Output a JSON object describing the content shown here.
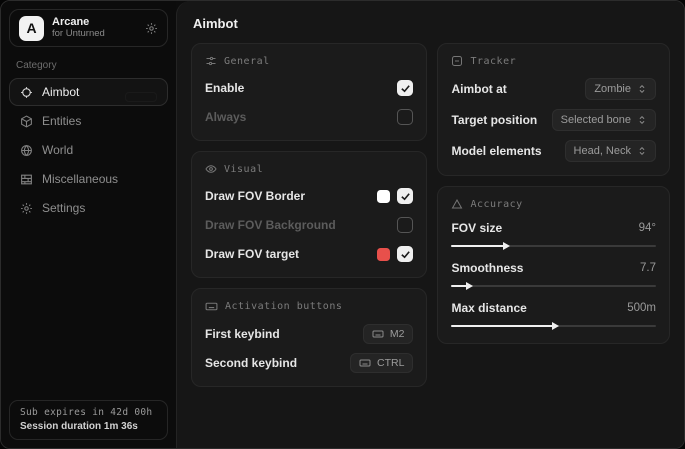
{
  "app": {
    "name": "Arcane",
    "subtitle": "for Unturned",
    "logo_letter": "A"
  },
  "sidebar": {
    "category_label": "Category",
    "items": [
      {
        "label": "Aimbot",
        "icon": "crosshair-icon",
        "active": true
      },
      {
        "label": "Entities",
        "icon": "cube-icon",
        "active": false
      },
      {
        "label": "World",
        "icon": "globe-icon",
        "active": false
      },
      {
        "label": "Miscellaneous",
        "icon": "bricks-icon",
        "active": false
      },
      {
        "label": "Settings",
        "icon": "gear-icon",
        "active": false
      }
    ],
    "status": {
      "line1": "Sub expires in 42d 00h",
      "line2": "Session duration 1m 36s"
    }
  },
  "main": {
    "title": "Aimbot",
    "general": {
      "title": "General",
      "rows": [
        {
          "label": "Enable",
          "checked": true
        },
        {
          "label": "Always",
          "checked": false
        }
      ]
    },
    "visual": {
      "title": "Visual",
      "rows": [
        {
          "label": "Draw FOV Border",
          "swatch": "#ffffff",
          "checked": true
        },
        {
          "label": "Draw FOV Background",
          "checked": false
        },
        {
          "label": "Draw FOV target",
          "swatch": "#e8504b",
          "checked": true
        }
      ]
    },
    "activation": {
      "title": "Activation buttons",
      "rows": [
        {
          "label": "First keybind",
          "key": "M2"
        },
        {
          "label": "Second keybind",
          "key": "CTRL"
        }
      ]
    },
    "tracker": {
      "title": "Tracker",
      "rows": [
        {
          "label": "Aimbot at",
          "value": "Zombie"
        },
        {
          "label": "Target position",
          "value": "Selected bone"
        },
        {
          "label": "Model elements",
          "value": "Head, Neck"
        }
      ]
    },
    "accuracy": {
      "title": "Accuracy",
      "rows": [
        {
          "label": "FOV size",
          "value": "94°",
          "percent": 26
        },
        {
          "label": "Smoothness",
          "value": "7.7",
          "percent": 8
        },
        {
          "label": "Max distance",
          "value": "500m",
          "percent": 50
        }
      ]
    }
  },
  "colors": {
    "accent_red": "#e8504b",
    "checkbox_checked": "#efefef"
  }
}
